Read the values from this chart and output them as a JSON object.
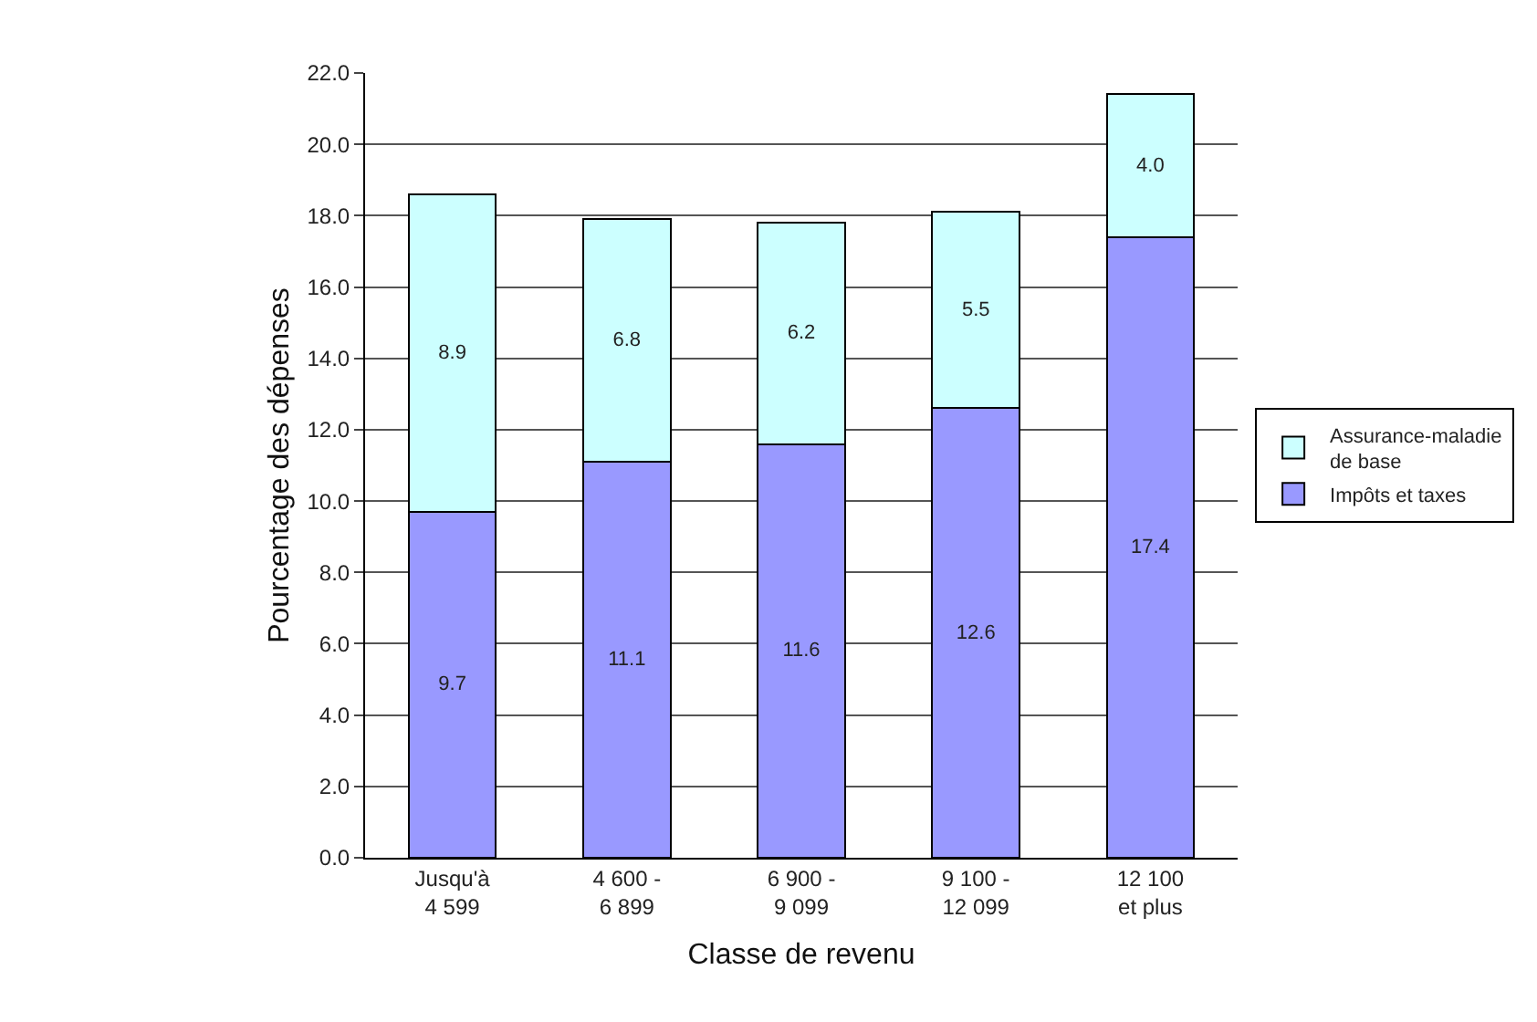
{
  "chart_data": {
    "type": "bar",
    "stacked": true,
    "xlabel": "Classe de revenu",
    "ylabel": "Pourcentage des dépenses",
    "categories": [
      "Jusqu'à 4 599",
      "4 600 - 6 899",
      "6 900 - 9 099",
      "9 100 - 12 099",
      "12 100 et plus"
    ],
    "series": [
      {
        "name": "Impôts et taxes",
        "color": "#9999ff",
        "values": [
          9.7,
          11.1,
          11.6,
          12.6,
          17.4
        ],
        "value_labels": [
          "9.7",
          "11.1",
          "11.6",
          "12.6",
          "17.4"
        ]
      },
      {
        "name": "Assurance-maladie de base",
        "color": "#ccffff",
        "values": [
          8.9,
          6.8,
          6.2,
          5.5,
          4.0
        ],
        "value_labels": [
          "8.9",
          "6.8",
          "6.2",
          "5.5",
          "4.0"
        ]
      }
    ],
    "ylim": [
      0,
      22
    ],
    "yticks": [
      {
        "value": 0,
        "label": "0.0"
      },
      {
        "value": 2,
        "label": "2.0"
      },
      {
        "value": 4,
        "label": "4.0"
      },
      {
        "value": 6,
        "label": "6.0"
      },
      {
        "value": 8,
        "label": "8.0"
      },
      {
        "value": 10,
        "label": "10.0"
      },
      {
        "value": 12,
        "label": "12.0"
      },
      {
        "value": 14,
        "label": "14.0"
      },
      {
        "value": 16,
        "label": "16.0"
      },
      {
        "value": 18,
        "label": "18.0"
      },
      {
        "value": 20,
        "label": "20.0"
      },
      {
        "value": 22,
        "label": "22.0"
      }
    ],
    "grid": "y",
    "legend": "right"
  }
}
